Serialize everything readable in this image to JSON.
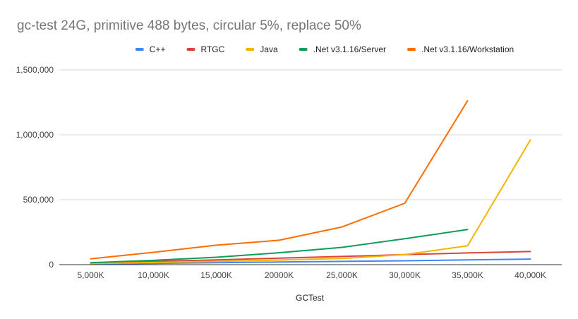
{
  "chart_data": {
    "type": "line",
    "title": "gc-test 24G, primitive 488 bytes, circular 5%, replace 50%",
    "xlabel": "GCTest",
    "ylabel": "",
    "categories": [
      "5,000K",
      "10,000K",
      "15,000K",
      "20000K",
      "25,000K",
      "30,000K",
      "35,000K",
      "40,000K"
    ],
    "ylim": [
      0,
      1500000
    ],
    "yticks": [
      0,
      500000,
      1000000,
      1500000
    ],
    "ytick_labels": [
      "0",
      "500,000",
      "1,000,000",
      "1,500,000"
    ],
    "grid": true,
    "legend_position": "top",
    "series": [
      {
        "name": "C++",
        "color": "#4285f4",
        "values": [
          5000,
          10000,
          15000,
          20000,
          25000,
          30000,
          37000,
          43000
        ]
      },
      {
        "name": "RTGC",
        "color": "#db4437",
        "values": [
          12000,
          25000,
          37000,
          50000,
          63000,
          77000,
          90000,
          101000
        ]
      },
      {
        "name": "Java",
        "color": "#f4b400",
        "values": [
          8000,
          17000,
          25000,
          36000,
          48000,
          77000,
          145000,
          960000
        ]
      },
      {
        "name": ".Net v3.1.16/Server",
        "color": "#0f9d58",
        "values": [
          15000,
          33000,
          57000,
          92000,
          133000,
          200000,
          270000,
          null
        ]
      },
      {
        "name": ".Net v3.1.16/Workstation",
        "color": "#ff6d01",
        "values": [
          45000,
          95000,
          150000,
          188000,
          290000,
          473000,
          1262000,
          null
        ]
      }
    ]
  }
}
